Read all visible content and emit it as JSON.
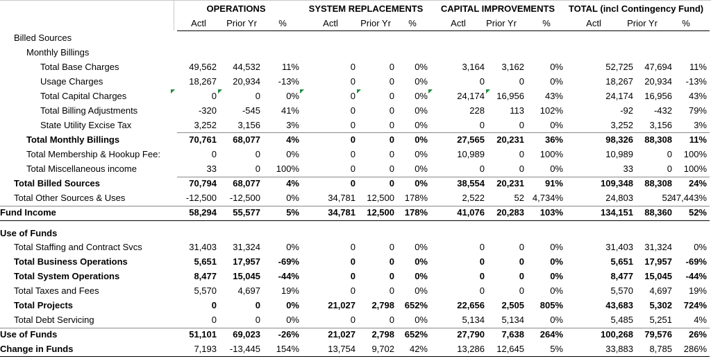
{
  "header": {
    "groups": [
      {
        "title": "OPERATIONS",
        "columns": [
          "Actl",
          "Prior Yr",
          "%"
        ]
      },
      {
        "title": "SYSTEM REPLACEMENTS",
        "columns": [
          "Actl",
          "Prior Yr",
          "%"
        ]
      },
      {
        "title": "CAPITAL IMPROVEMENTS",
        "columns": [
          "Actl",
          "Prior Yr",
          "%"
        ]
      },
      {
        "title": "TOTAL (incl Contingency Fund)",
        "columns": [
          "Actl",
          "Prior Yr",
          "%"
        ]
      }
    ]
  },
  "table": {
    "rows": [
      {
        "label": "Billed Sources"
      },
      {
        "label": "Monthly Billings"
      },
      {
        "label": "Total Base Charges",
        "cells": [
          "49,562",
          "44,532",
          "11%",
          "0",
          "0",
          "0%",
          "3,164",
          "3,162",
          "0%",
          "52,725",
          "47,694",
          "11%"
        ]
      },
      {
        "label": "Usage Charges",
        "cells": [
          "18,267",
          "20,934",
          "-13%",
          "0",
          "0",
          "0%",
          "0",
          "0",
          "0%",
          "18,267",
          "20,934",
          "-13%"
        ]
      },
      {
        "label": "Total Capital Charges",
        "cells": [
          "0",
          "0",
          "0%",
          "0",
          "0",
          "0%",
          "24,174",
          "16,956",
          "43%",
          "24,174",
          "16,956",
          "43%"
        ]
      },
      {
        "label": "Total Billing Adjustments",
        "cells": [
          "-320",
          "-545",
          "41%",
          "0",
          "0",
          "0%",
          "228",
          "113",
          "102%",
          "-92",
          "-432",
          "79%"
        ]
      },
      {
        "label": "State Utility Excise Tax",
        "cells": [
          "3,252",
          "3,156",
          "3%",
          "0",
          "0",
          "0%",
          "0",
          "0",
          "0%",
          "3,252",
          "3,156",
          "3%"
        ]
      },
      {
        "label": "Total Monthly Billings",
        "cells": [
          "70,761",
          "68,077",
          "4%",
          "0",
          "0",
          "0%",
          "27,565",
          "20,231",
          "36%",
          "98,326",
          "88,308",
          "11%"
        ]
      },
      {
        "label": "Total Membership & Hookup Fee:",
        "cells": [
          "0",
          "0",
          "0%",
          "0",
          "0",
          "0%",
          "10,989",
          "0",
          "100%",
          "10,989",
          "0",
          "100%"
        ]
      },
      {
        "label": "Total Miscellaneous income",
        "cells": [
          "33",
          "0",
          "100%",
          "0",
          "0",
          "0%",
          "0",
          "0",
          "0%",
          "33",
          "0",
          "100%"
        ]
      },
      {
        "label": "Total Billed Sources",
        "cells": [
          "70,794",
          "68,077",
          "4%",
          "0",
          "0",
          "0%",
          "38,554",
          "20,231",
          "91%",
          "109,348",
          "88,308",
          "24%"
        ]
      },
      {
        "label": "Total Other Sources & Uses",
        "cells": [
          "-12,500",
          "-12,500",
          "0%",
          "34,781",
          "12,500",
          "178%",
          "2,522",
          "52",
          "4,734%",
          "24,803",
          "52",
          "47,443%"
        ]
      },
      {
        "label": "Fund Income",
        "cells": [
          "58,294",
          "55,577",
          "5%",
          "34,781",
          "12,500",
          "178%",
          "41,076",
          "20,283",
          "103%",
          "134,151",
          "88,360",
          "52%"
        ]
      },
      {
        "label": "Use of Funds"
      },
      {
        "label": "Total Staffing and Contract Svcs",
        "cells": [
          "31,403",
          "31,324",
          "0%",
          "0",
          "0",
          "0%",
          "0",
          "0",
          "0%",
          "31,403",
          "31,324",
          "0%"
        ]
      },
      {
        "label": "Total Business Operations",
        "cells": [
          "5,651",
          "17,957",
          "-69%",
          "0",
          "0",
          "0%",
          "0",
          "0",
          "0%",
          "5,651",
          "17,957",
          "-69%"
        ]
      },
      {
        "label": "Total System Operations",
        "cells": [
          "8,477",
          "15,045",
          "-44%",
          "0",
          "0",
          "0%",
          "0",
          "0",
          "0%",
          "8,477",
          "15,045",
          "-44%"
        ]
      },
      {
        "label": "Total Taxes and Fees",
        "cells": [
          "5,570",
          "4,697",
          "19%",
          "0",
          "0",
          "0%",
          "0",
          "0",
          "0%",
          "5,570",
          "4,697",
          "19%"
        ]
      },
      {
        "label": "Total Projects",
        "cells": [
          "0",
          "0",
          "0%",
          "21,027",
          "2,798",
          "652%",
          "22,656",
          "2,505",
          "805%",
          "43,683",
          "5,302",
          "724%"
        ]
      },
      {
        "label": "Total Debt Servicing",
        "cells": [
          "0",
          "0",
          "0%",
          "0",
          "0",
          "0%",
          "5,134",
          "5,134",
          "0%",
          "5,485",
          "5,251",
          "4%"
        ]
      },
      {
        "label": "Use of Funds",
        "cells": [
          "51,101",
          "69,023",
          "-26%",
          "21,027",
          "2,798",
          "652%",
          "27,790",
          "7,638",
          "264%",
          "100,268",
          "79,576",
          "26%"
        ]
      },
      {
        "label": "Change in Funds",
        "cells": [
          "7,193",
          "-13,445",
          "154%",
          "13,754",
          "9,702",
          "42%",
          "13,286",
          "12,645",
          "5%",
          "33,883",
          "8,785",
          "286%"
        ]
      }
    ]
  }
}
